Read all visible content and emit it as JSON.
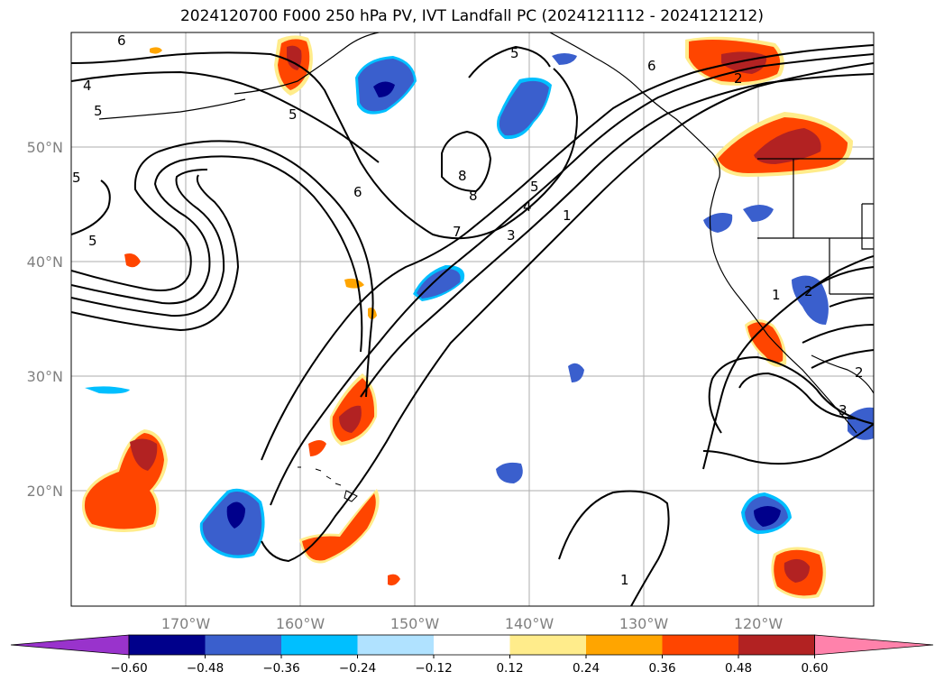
{
  "title": "2024120700 F000 250 hPa PV, IVT Landfall PC (2024121112 - 2024121212)",
  "map": {
    "projection": "PlateCarree",
    "lon_range": [
      -180,
      -110
    ],
    "lat_range": [
      10,
      60
    ],
    "lon_labels": [
      "170°W",
      "160°W",
      "150°W",
      "140°W",
      "130°W",
      "120°W"
    ],
    "lat_labels": [
      "50°N",
      "40°N",
      "30°N",
      "20°N"
    ],
    "contour_field": "250 hPa PV",
    "contour_labels": [
      "6",
      "4",
      "5",
      "5",
      "5",
      "5",
      "6",
      "5",
      "8",
      "8",
      "7",
      "5",
      "4",
      "3",
      "1",
      "6",
      "2",
      "1",
      "2",
      "2",
      "3",
      "1"
    ],
    "shaded_field": "IVT Landfall PC"
  },
  "colorbar": {
    "ticks": [
      "−0.60",
      "−0.48",
      "−0.36",
      "−0.24",
      "−0.12",
      "0.12",
      "0.24",
      "0.36",
      "0.48",
      "0.60"
    ],
    "colors": [
      "#9933cc",
      "#00008b",
      "#3a5fcd",
      "#00bfff",
      "#b0e2ff",
      "#ffffff",
      "#ffec8b",
      "#ffa500",
      "#ff4500",
      "#b22222",
      "#ff82ab"
    ]
  }
}
